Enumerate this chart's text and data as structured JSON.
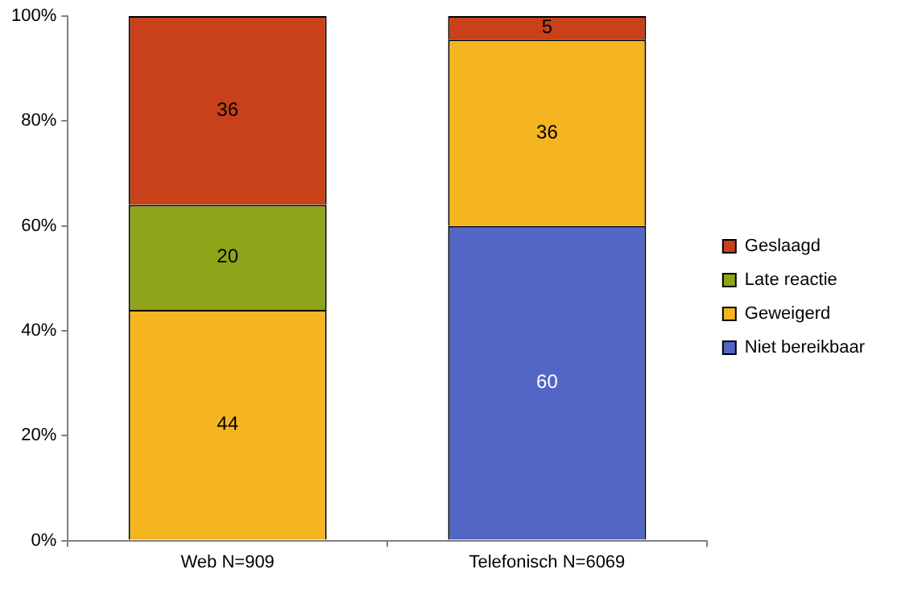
{
  "chart_data": {
    "type": "bar",
    "stacked": true,
    "categories": [
      "Web N=909",
      "Telefonisch N=6069"
    ],
    "series": [
      {
        "name": "Niet bereikbaar",
        "color": "#5366c6",
        "values": [
          null,
          60
        ],
        "value_labels": [
          null,
          "60"
        ]
      },
      {
        "name": "Geweigerd",
        "color": "#f5b521",
        "values": [
          44,
          35.5
        ],
        "value_labels": [
          "44",
          "36"
        ]
      },
      {
        "name": "Late reactie",
        "color": "#8fa419",
        "values": [
          20,
          null
        ],
        "value_labels": [
          "20",
          null
        ]
      },
      {
        "name": "Geslaagd",
        "color": "#c8411a",
        "values": [
          36,
          4.5
        ],
        "value_labels": [
          "36",
          "5"
        ]
      }
    ],
    "ylim": [
      0,
      100
    ],
    "yticks": [
      {
        "value": 0,
        "label": "0%"
      },
      {
        "value": 20,
        "label": "20%"
      },
      {
        "value": 40,
        "label": "40%"
      },
      {
        "value": 60,
        "label": "60%"
      },
      {
        "value": 80,
        "label": "80%"
      },
      {
        "value": 100,
        "label": "100%"
      }
    ],
    "grid": false,
    "legend": "right"
  }
}
